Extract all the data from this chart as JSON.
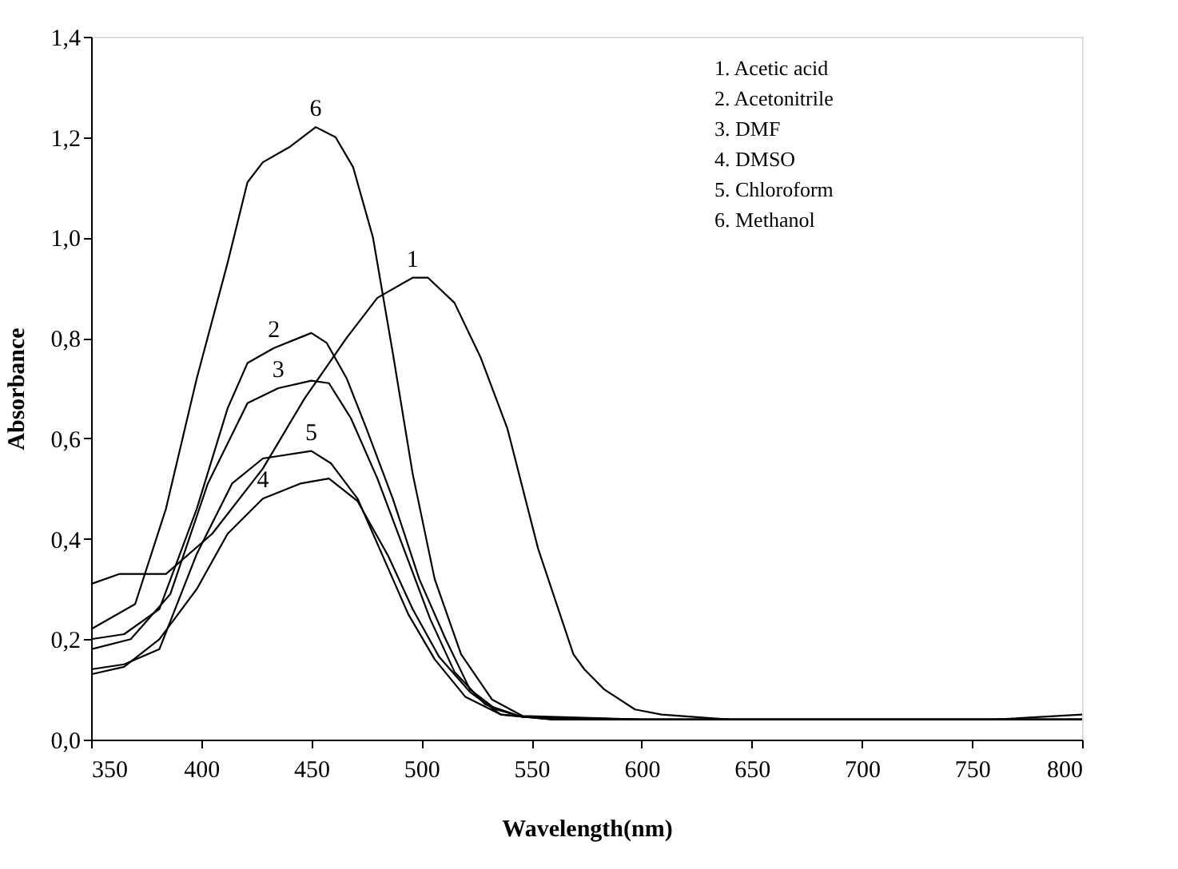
{
  "chart_data": {
    "type": "line",
    "xlabel": "Wavelength(nm)",
    "ylabel": "Absorbance",
    "xlim": [
      350,
      800
    ],
    "xticks": [
      350,
      400,
      450,
      500,
      550,
      600,
      650,
      700,
      750,
      800
    ],
    "ylim": [
      0,
      1.4
    ],
    "yticks": [
      {
        "value": 0,
        "label": "0,0"
      },
      {
        "value": 0.2,
        "label": "0,2"
      },
      {
        "value": 0.4,
        "label": "0,4"
      },
      {
        "value": 0.6,
        "label": "0,6"
      },
      {
        "value": 0.8,
        "label": "0,8"
      },
      {
        "value": 1.0,
        "label": "1,0"
      },
      {
        "value": 1.2,
        "label": "1,2"
      },
      {
        "value": 1.4,
        "label": "1,4"
      }
    ],
    "grid": false,
    "marker": "none",
    "line_style": "solid",
    "series": [
      {
        "color": "#000000",
        "x": [
          350,
          363,
          384,
          405,
          428,
          447,
          466,
          480,
          496,
          503,
          515,
          527,
          539,
          553,
          569,
          574,
          583,
          597,
          609,
          640,
          700,
          760,
          800
        ],
        "values": [
          0.31,
          0.33,
          0.33,
          0.41,
          0.54,
          0.68,
          0.8,
          0.88,
          0.92,
          0.92,
          0.87,
          0.76,
          0.62,
          0.38,
          0.17,
          0.14,
          0.1,
          0.06,
          0.05,
          0.04,
          0.04,
          0.04,
          0.05
        ]
      },
      {
        "color": "#000000",
        "x": [
          350,
          365,
          381,
          398,
          412,
          421,
          433,
          450,
          457,
          466,
          475,
          487,
          499,
          511,
          522,
          534,
          546,
          600,
          700,
          800
        ],
        "values": [
          0.2,
          0.21,
          0.26,
          0.46,
          0.66,
          0.75,
          0.78,
          0.81,
          0.79,
          0.72,
          0.62,
          0.48,
          0.32,
          0.2,
          0.1,
          0.06,
          0.045,
          0.04,
          0.04,
          0.04
        ]
      },
      {
        "color": "#000000",
        "x": [
          350,
          368,
          386,
          403,
          421,
          435,
          450,
          458,
          468,
          480,
          492,
          504,
          515,
          529,
          546,
          600,
          700,
          800
        ],
        "values": [
          0.18,
          0.2,
          0.29,
          0.51,
          0.67,
          0.7,
          0.715,
          0.71,
          0.64,
          0.52,
          0.38,
          0.24,
          0.135,
          0.07,
          0.045,
          0.04,
          0.04,
          0.04
        ]
      },
      {
        "color": "#000000",
        "x": [
          350,
          365,
          381,
          398,
          412,
          428,
          445,
          458,
          471,
          485,
          496,
          508,
          522,
          536,
          560,
          650,
          800
        ],
        "values": [
          0.13,
          0.145,
          0.2,
          0.3,
          0.41,
          0.48,
          0.51,
          0.52,
          0.475,
          0.365,
          0.26,
          0.165,
          0.095,
          0.05,
          0.04,
          0.04,
          0.04
        ]
      },
      {
        "color": "#000000",
        "x": [
          350,
          365,
          381,
          398,
          414,
          428,
          450,
          459,
          471,
          482,
          494,
          506,
          520,
          536,
          560,
          650,
          800
        ],
        "values": [
          0.14,
          0.15,
          0.18,
          0.37,
          0.51,
          0.56,
          0.575,
          0.55,
          0.48,
          0.37,
          0.25,
          0.16,
          0.085,
          0.05,
          0.04,
          0.04,
          0.04
        ]
      },
      {
        "color": "#000000",
        "x": [
          350,
          370,
          384,
          398,
          412,
          421,
          428,
          440,
          452,
          461,
          469,
          478,
          487,
          496,
          506,
          518,
          532,
          546,
          600,
          700,
          800
        ],
        "values": [
          0.22,
          0.27,
          0.46,
          0.72,
          0.95,
          1.11,
          1.15,
          1.18,
          1.22,
          1.2,
          1.14,
          1.0,
          0.77,
          0.53,
          0.32,
          0.17,
          0.08,
          0.047,
          0.04,
          0.04,
          0.04
        ]
      }
    ],
    "annotations": [
      {
        "text": "1",
        "x": 496,
        "y": 0.92
      },
      {
        "text": "2",
        "x": 433,
        "y": 0.78
      },
      {
        "text": "3",
        "x": 435,
        "y": 0.7
      },
      {
        "text": "4",
        "x": 428,
        "y": 0.48
      },
      {
        "text": "5",
        "x": 450,
        "y": 0.575
      },
      {
        "text": "6",
        "x": 452,
        "y": 1.22
      },
      "1. Acetic acid",
      "2. Acetonitrile",
      "3. DMF",
      "4. DMSO",
      "5. Chloroform",
      "6. Methanol"
    ]
  }
}
